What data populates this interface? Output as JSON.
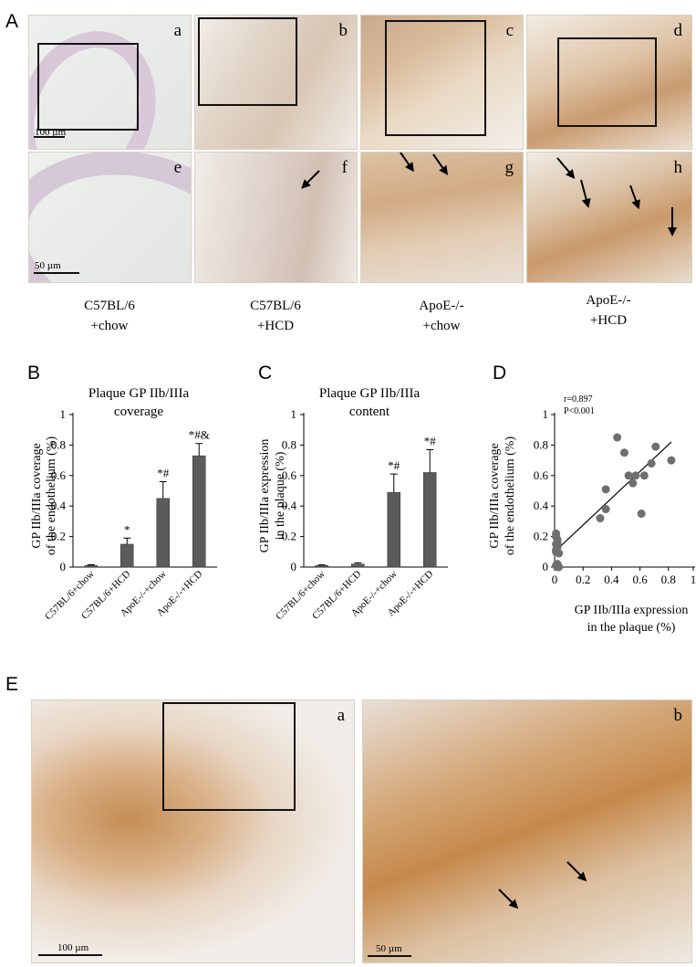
{
  "panelA": {
    "letter": "A",
    "subs": [
      "a",
      "b",
      "c",
      "d",
      "e",
      "f",
      "g",
      "h"
    ],
    "scale_top": "100 µm",
    "scale_bottom": "50 µm",
    "conditions": [
      [
        "C57BL/6",
        "+chow"
      ],
      [
        "C57BL/6",
        "+HCD"
      ],
      [
        "ApoE-/-",
        "+chow"
      ],
      [
        "ApoE-/-",
        "+HCD"
      ]
    ]
  },
  "panelB": {
    "letter": "B",
    "title": [
      "Plaque GP IIb/IIIa",
      "coverage"
    ],
    "ylabel": [
      "GP IIb/IIIa coverage",
      "of the endothelium (%)"
    ]
  },
  "panelC": {
    "letter": "C",
    "title": [
      "Plaque GP IIb/IIIa",
      "content"
    ],
    "ylabel": [
      "GP IIb/IIIa expression",
      "in the plaque (%)"
    ]
  },
  "panelD": {
    "letter": "D",
    "stat_r": "r=0.897",
    "stat_p": "P<0.001",
    "ylabel": [
      "GP IIb/IIIa coverage",
      "of the endothelium (%)"
    ],
    "xlabel": [
      "GP IIb/IIIa expression",
      "in the plaque (%)"
    ]
  },
  "panelE": {
    "letter": "E",
    "subs": [
      "a",
      "b"
    ],
    "scale_left": "100 µm",
    "scale_right": "50 µm"
  },
  "chart_data": [
    {
      "type": "bar",
      "id": "B",
      "title": "Plaque GP IIb/IIIa coverage",
      "ylabel": "GP IIb/IIIa coverage of the endothelium (%)",
      "categories": [
        "C57BL/6+chow",
        "C57BL/6+HCD",
        "ApoE-/-+chow",
        "ApoE-/-+HCD"
      ],
      "values": [
        0.01,
        0.15,
        0.45,
        0.73
      ],
      "errors": [
        0.005,
        0.04,
        0.11,
        0.08
      ],
      "annotations": [
        "",
        "*",
        "*#",
        "*#&"
      ],
      "ylim": [
        0,
        1
      ],
      "yticks": [
        "0",
        "0.2",
        "0.4",
        "0.6",
        "0.8",
        "1"
      ]
    },
    {
      "type": "bar",
      "id": "C",
      "title": "Plaque GP IIb/IIIa content",
      "ylabel": "GP IIb/IIIa expression in the plaque (%)",
      "categories": [
        "C57BL/6+chow",
        "C57BL/6+HCD",
        "ApoE-/-+chow",
        "ApoE-/-+HCD"
      ],
      "values": [
        0.01,
        0.02,
        0.49,
        0.62
      ],
      "errors": [
        0.004,
        0.008,
        0.12,
        0.15
      ],
      "annotations": [
        "",
        "",
        "*#",
        "*#"
      ],
      "ylim": [
        0,
        1
      ],
      "yticks": [
        "0",
        "0.2",
        "0.4",
        "0.6",
        "0.8",
        "1"
      ]
    },
    {
      "type": "scatter",
      "id": "D",
      "xlabel": "GP IIb/IIIa expression in the plaque (%)",
      "ylabel": "GP IIb/IIIa coverage of the endothelium (%)",
      "xlim": [
        0,
        1
      ],
      "ylim": [
        0,
        1
      ],
      "xticks": [
        "0",
        "0.2",
        "0.4",
        "0.6",
        "0.8",
        "1"
      ],
      "yticks": [
        "0",
        "0.2",
        "0.4",
        "0.6",
        "0.8",
        "1"
      ],
      "x": [
        0.01,
        0.01,
        0.02,
        0.01,
        0.02,
        0.01,
        0.03,
        0.02,
        0.01,
        0.02,
        0.03,
        0.02,
        0.01,
        0.02,
        0.32,
        0.36,
        0.36,
        0.44,
        0.49,
        0.52,
        0.55,
        0.57,
        0.61,
        0.63,
        0.68,
        0.71,
        0.82
      ],
      "y": [
        0.22,
        0.2,
        0.18,
        0.15,
        0.13,
        0.1,
        0.09,
        0.02,
        0.01,
        0.0,
        0.0,
        0.01,
        0.11,
        0.16,
        0.32,
        0.38,
        0.51,
        0.85,
        0.75,
        0.6,
        0.55,
        0.6,
        0.35,
        0.6,
        0.68,
        0.79,
        0.7
      ],
      "trendline": {
        "x": [
          0.0,
          0.82
        ],
        "y": [
          0.1,
          0.82
        ]
      },
      "r": "0.897",
      "p": "<0.001"
    }
  ]
}
